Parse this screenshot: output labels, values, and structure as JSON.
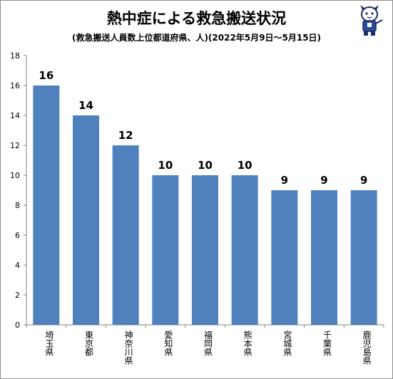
{
  "chart_data": {
    "type": "bar",
    "title": "熱中症による救急搬送状況",
    "subtitle": "(救急搬送人員数上位都道府県、人)(2022年5月9日～5月15日)",
    "categories": [
      "埼玉県",
      "東京都",
      "神奈川県",
      "愛知県",
      "福岡県",
      "熊本県",
      "宮城県",
      "千葉県",
      "鹿児島県"
    ],
    "values": [
      16,
      14,
      12,
      10,
      10,
      10,
      9,
      9,
      9
    ],
    "ylim": [
      0,
      18
    ],
    "yticks": [
      0,
      2,
      4,
      6,
      8,
      10,
      12,
      14,
      16,
      18
    ],
    "xlabel": "",
    "ylabel": "",
    "grid": false,
    "legend": "none",
    "bar_color": "#4f81bd"
  }
}
